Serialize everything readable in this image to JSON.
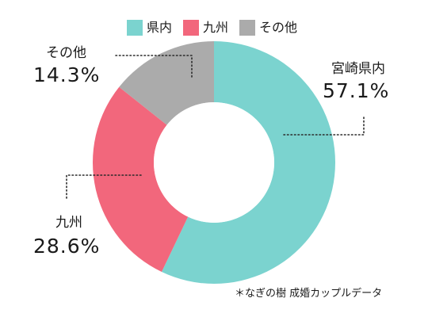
{
  "chart_data": {
    "type": "pie",
    "donut": true,
    "categories": [
      "県内",
      "九州",
      "その他"
    ],
    "values": [
      57.1,
      28.6,
      14.3
    ],
    "colors": [
      "#7bd3cf",
      "#f2677c",
      "#ababab"
    ],
    "slice_labels": [
      {
        "category": "宮崎県内",
        "value": "57.1%"
      },
      {
        "category": "九州",
        "value": "28.6%"
      },
      {
        "category": "その他",
        "value": "14.3%"
      }
    ],
    "legend": {
      "position": "top",
      "items": [
        "県内",
        "九州",
        "その他"
      ]
    },
    "note": "＊なぎの樹  成婚カップルデータ"
  }
}
